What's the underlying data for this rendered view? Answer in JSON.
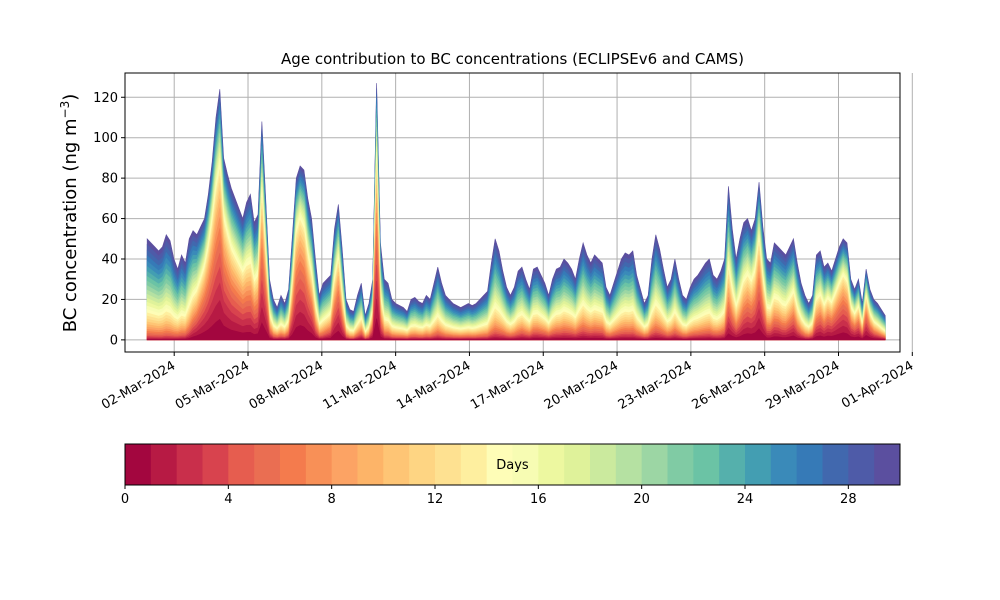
{
  "chart_data": {
    "type": "area",
    "title": "Age contribution to BC concentrations (ECLIPSEv6 and CAMS)",
    "ylabel_main": "BC concentration (ng m",
    "ylabel_sup": "−3",
    "ylabel_close": ")",
    "xlabel": "",
    "ylim": [
      -6,
      132
    ],
    "yticks": [
      0,
      20,
      40,
      60,
      80,
      100,
      120
    ],
    "xlim": [
      0,
      31.5
    ],
    "x_start_day": 0.9,
    "x_end_day": 30.9,
    "xtick_days": [
      2,
      5,
      8,
      11,
      14,
      17,
      20,
      23,
      26,
      29,
      32
    ],
    "xtick_labels": [
      "02-Mar-2024",
      "05-Mar-2024",
      "08-Mar-2024",
      "11-Mar-2024",
      "14-Mar-2024",
      "17-Mar-2024",
      "20-Mar-2024",
      "23-Mar-2024",
      "26-Mar-2024",
      "29-Mar-2024",
      "01-Apr-2024"
    ],
    "grid": true,
    "total": [
      50,
      48,
      46,
      44,
      46,
      52,
      49,
      40,
      35,
      42,
      38,
      50,
      54,
      52,
      56,
      60,
      72,
      88,
      110,
      124,
      90,
      82,
      75,
      70,
      65,
      60,
      68,
      72,
      58,
      62,
      108,
      70,
      30,
      20,
      16,
      22,
      18,
      25,
      52,
      80,
      86,
      84,
      70,
      60,
      40,
      22,
      28,
      30,
      32,
      55,
      67,
      45,
      20,
      15,
      14,
      22,
      28,
      12,
      18,
      30,
      127,
      48,
      30,
      28,
      20,
      18,
      17,
      16,
      14,
      20,
      21,
      19,
      18,
      22,
      20,
      28,
      36,
      28,
      22,
      20,
      18,
      17,
      16,
      17,
      18,
      17,
      18,
      20,
      22,
      24,
      38,
      50,
      44,
      34,
      26,
      22,
      26,
      34,
      36,
      30,
      25,
      35,
      36,
      32,
      28,
      22,
      30,
      35,
      36,
      40,
      38,
      35,
      30,
      40,
      48,
      42,
      38,
      42,
      40,
      38,
      26,
      22,
      28,
      34,
      40,
      43,
      42,
      44,
      32,
      25,
      18,
      22,
      40,
      52,
      45,
      35,
      26,
      30,
      40,
      30,
      22,
      20,
      26,
      30,
      32,
      35,
      38,
      40,
      32,
      30,
      34,
      40,
      76,
      55,
      40,
      50,
      58,
      60,
      54,
      60,
      78,
      56,
      40,
      38,
      48,
      46,
      44,
      42,
      46,
      50,
      38,
      28,
      22,
      18,
      22,
      42,
      44,
      36,
      38,
      34,
      40,
      46,
      50,
      48,
      30,
      25,
      30,
      18,
      35,
      25,
      20,
      18,
      15,
      12
    ],
    "fresh": [
      0.02,
      0.02,
      0.02,
      0.02,
      0.02,
      0.02,
      0.02,
      0.03,
      0.04,
      0.04,
      0.06,
      0.1,
      0.2,
      0.3,
      0.4,
      0.5,
      0.55,
      0.6,
      0.62,
      0.64,
      0.6,
      0.55,
      0.5,
      0.48,
      0.46,
      0.44,
      0.42,
      0.4,
      0.35,
      0.38,
      0.6,
      0.5,
      0.2,
      0.1,
      0.1,
      0.1,
      0.1,
      0.15,
      0.4,
      0.6,
      0.65,
      0.6,
      0.5,
      0.4,
      0.2,
      0.1,
      0.1,
      0.15,
      0.2,
      0.4,
      0.5,
      0.3,
      0.1,
      0.05,
      0.05,
      0.1,
      0.15,
      0.05,
      0.1,
      0.3,
      0.65,
      0.25,
      0.1,
      0.1,
      0.08,
      0.08,
      0.08,
      0.08,
      0.08,
      0.08,
      0.08,
      0.08,
      0.08,
      0.08,
      0.08,
      0.08,
      0.08,
      0.08,
      0.08,
      0.08,
      0.08,
      0.08,
      0.08,
      0.08,
      0.08,
      0.08,
      0.08,
      0.08,
      0.08,
      0.08,
      0.08,
      0.08,
      0.08,
      0.1,
      0.1,
      0.1,
      0.1,
      0.1,
      0.12,
      0.12,
      0.12,
      0.14,
      0.14,
      0.14,
      0.14,
      0.14,
      0.14,
      0.14,
      0.14,
      0.14,
      0.14,
      0.14,
      0.14,
      0.14,
      0.14,
      0.14,
      0.14,
      0.14,
      0.14,
      0.14,
      0.1,
      0.1,
      0.1,
      0.1,
      0.1,
      0.1,
      0.1,
      0.1,
      0.1,
      0.1,
      0.1,
      0.1,
      0.1,
      0.1,
      0.1,
      0.1,
      0.1,
      0.1,
      0.1,
      0.1,
      0.1,
      0.1,
      0.1,
      0.1,
      0.1,
      0.1,
      0.1,
      0.1,
      0.1,
      0.1,
      0.1,
      0.12,
      0.3,
      0.25,
      0.2,
      0.25,
      0.35,
      0.4,
      0.4,
      0.45,
      0.55,
      0.4,
      0.2,
      0.2,
      0.25,
      0.25,
      0.2,
      0.2,
      0.25,
      0.3,
      0.2,
      0.15,
      0.1,
      0.1,
      0.15,
      0.3,
      0.35,
      0.3,
      0.4,
      0.4,
      0.45,
      0.5,
      0.55,
      0.5,
      0.4,
      0.35,
      0.4,
      0.2,
      0.5,
      0.35,
      0.25,
      0.2,
      0.15,
      0.1
    ],
    "colorbar": {
      "label": "Days",
      "ticks": [
        0,
        4,
        8,
        12,
        16,
        20,
        24,
        28
      ],
      "bins": 30,
      "colors": [
        "#a3063f",
        "#b71a44",
        "#c92f4b",
        "#d8434e",
        "#e65d4f",
        "#ea6e52",
        "#f47b4d",
        "#f89057",
        "#fca364",
        "#fdb468",
        "#fec575",
        "#fed583",
        "#fee191",
        "#feef9f",
        "#fefdb7",
        "#f7fcb3",
        "#edf8a0",
        "#dff29a",
        "#cbea9e",
        "#b5e1a2",
        "#9cd6a4",
        "#80cba4",
        "#6bc3a5",
        "#55b0ac",
        "#439eb2",
        "#3a8ab9",
        "#367ab7",
        "#4168ae",
        "#4e5ba8",
        "#5b4f9f"
      ]
    }
  }
}
